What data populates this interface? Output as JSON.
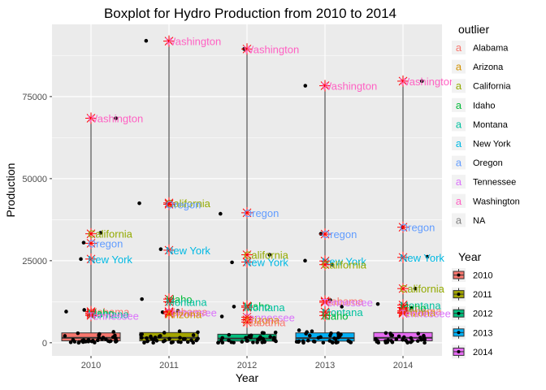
{
  "chart_data": {
    "type": "boxplot",
    "title": "Boxplot for Hydro Production from 2010 to 2014",
    "xlabel": "Year",
    "ylabel": "Production",
    "categories": [
      "2010",
      "2011",
      "2012",
      "2013",
      "2014"
    ],
    "ylim": [
      -4000,
      97000
    ],
    "yticks": [
      0,
      25000,
      50000,
      75000
    ],
    "ytick_labels": [
      "0",
      "25000",
      "50000",
      "75000"
    ],
    "boxes": [
      {
        "year": "2010",
        "q1": 600,
        "median": 1500,
        "q3": 3000
      },
      {
        "year": "2011",
        "q1": 600,
        "median": 1500,
        "q3": 3100
      },
      {
        "year": "2012",
        "q1": 500,
        "median": 1300,
        "q3": 2600
      },
      {
        "year": "2013",
        "q1": 500,
        "median": 1400,
        "q3": 3000
      },
      {
        "year": "2014",
        "q1": 600,
        "median": 1500,
        "q3": 3100
      }
    ],
    "outliers": [
      {
        "year": "2010",
        "state": "Washington",
        "value": 68400
      },
      {
        "year": "2010",
        "state": "California",
        "value": 33200
      },
      {
        "year": "2010",
        "state": "Oregon",
        "value": 30300
      },
      {
        "year": "2010",
        "state": "New York",
        "value": 25500
      },
      {
        "year": "2010",
        "state": "Alabama",
        "value": 9500
      },
      {
        "year": "2010",
        "state": "Idaho",
        "value": 9100
      },
      {
        "year": "2010",
        "state": "Montana",
        "value": 8700
      },
      {
        "year": "2010",
        "state": "Tennessee",
        "value": 8300
      },
      {
        "year": "2011",
        "state": "Washington",
        "value": 91900
      },
      {
        "year": "2011",
        "state": "California",
        "value": 42600
      },
      {
        "year": "2011",
        "state": "Oregon",
        "value": 42200
      },
      {
        "year": "2011",
        "state": "New York",
        "value": 28200
      },
      {
        "year": "2011",
        "state": "Idaho",
        "value": 13300
      },
      {
        "year": "2011",
        "state": "Montana",
        "value": 12500
      },
      {
        "year": "2011",
        "state": "Alabama",
        "value": 9500
      },
      {
        "year": "2011",
        "state": "Tennessee",
        "value": 9200
      },
      {
        "year": "2011",
        "state": "Arizona",
        "value": 8800
      },
      {
        "year": "2012",
        "state": "Washington",
        "value": 89500
      },
      {
        "year": "2012",
        "state": "Oregon",
        "value": 39600
      },
      {
        "year": "2012",
        "state": "California",
        "value": 26800
      },
      {
        "year": "2012",
        "state": "New York",
        "value": 24600
      },
      {
        "year": "2012",
        "state": "Idaho",
        "value": 11200
      },
      {
        "year": "2012",
        "state": "Montana",
        "value": 10800
      },
      {
        "year": "2012",
        "state": "Tennessee",
        "value": 7800
      },
      {
        "year": "2012",
        "state": "Arizona",
        "value": 7000
      },
      {
        "year": "2012",
        "state": "Alabama",
        "value": 6300
      },
      {
        "year": "2013",
        "state": "Washington",
        "value": 78300
      },
      {
        "year": "2013",
        "state": "Oregon",
        "value": 33100
      },
      {
        "year": "2013",
        "state": "New York",
        "value": 24900
      },
      {
        "year": "2013",
        "state": "California",
        "value": 23800
      },
      {
        "year": "2013",
        "state": "Alabama",
        "value": 12700
      },
      {
        "year": "2013",
        "state": "Tennessee",
        "value": 12300
      },
      {
        "year": "2013",
        "state": "Montana",
        "value": 9400
      },
      {
        "year": "2013",
        "state": "Idaho",
        "value": 8300
      },
      {
        "year": "2014",
        "state": "Washington",
        "value": 79700
      },
      {
        "year": "2014",
        "state": "Oregon",
        "value": 35200
      },
      {
        "year": "2014",
        "state": "New York",
        "value": 26000
      },
      {
        "year": "2014",
        "state": "California",
        "value": 16500
      },
      {
        "year": "2014",
        "state": "Montana",
        "value": 11500
      },
      {
        "year": "2014",
        "state": "Idaho",
        "value": 10700
      },
      {
        "year": "2014",
        "state": "Alabama",
        "value": 9700
      },
      {
        "year": "2014",
        "state": "Arizona",
        "value": 9300
      },
      {
        "year": "2014",
        "state": "Tennessee",
        "value": 9000
      }
    ],
    "jitter_points": [
      {
        "year": "2010",
        "value": 68400
      },
      {
        "year": "2010",
        "value": 33500
      },
      {
        "year": "2010",
        "value": 30500
      },
      {
        "year": "2010",
        "value": 25500
      },
      {
        "year": "2010",
        "value": 10000
      },
      {
        "year": "2010",
        "value": 9500
      },
      {
        "year": "2011",
        "value": 92000
      },
      {
        "year": "2011",
        "value": 42500
      },
      {
        "year": "2011",
        "value": 42300
      },
      {
        "year": "2011",
        "value": 28500
      },
      {
        "year": "2011",
        "value": 13300
      },
      {
        "year": "2011",
        "value": 9700
      },
      {
        "year": "2011",
        "value": 9300
      },
      {
        "year": "2012",
        "value": 89500
      },
      {
        "year": "2012",
        "value": 39300
      },
      {
        "year": "2012",
        "value": 26800
      },
      {
        "year": "2012",
        "value": 24500
      },
      {
        "year": "2012",
        "value": 11000
      },
      {
        "year": "2012",
        "value": 8000
      },
      {
        "year": "2013",
        "value": 78300
      },
      {
        "year": "2013",
        "value": 33200
      },
      {
        "year": "2013",
        "value": 25000
      },
      {
        "year": "2013",
        "value": 23800
      },
      {
        "year": "2013",
        "value": 13000
      },
      {
        "year": "2013",
        "value": 11000
      },
      {
        "year": "2014",
        "value": 79700
      },
      {
        "year": "2014",
        "value": 35200
      },
      {
        "year": "2014",
        "value": 26200
      },
      {
        "year": "2014",
        "value": 16500
      },
      {
        "year": "2014",
        "value": 11800
      },
      {
        "year": "2014",
        "value": 10500
      }
    ],
    "legend_outlier": {
      "title": "outlier",
      "position": "right",
      "entries": [
        {
          "label": "Alabama",
          "color": "#F8766D"
        },
        {
          "label": "Arizona",
          "color": "#D39200"
        },
        {
          "label": "California",
          "color": "#93AA00"
        },
        {
          "label": "Idaho",
          "color": "#00BA38"
        },
        {
          "label": "Montana",
          "color": "#00C19F"
        },
        {
          "label": "New York",
          "color": "#00B9E3"
        },
        {
          "label": "Oregon",
          "color": "#619CFF"
        },
        {
          "label": "Tennessee",
          "color": "#DB72FB"
        },
        {
          "label": "Washington",
          "color": "#FF61C3"
        },
        {
          "label": "NA",
          "color": "#7F7F7F"
        }
      ]
    },
    "legend_year": {
      "title": "Year",
      "position": "right",
      "entries": [
        {
          "label": "2010",
          "color": "#F8766D"
        },
        {
          "label": "2011",
          "color": "#A3A500"
        },
        {
          "label": "2012",
          "color": "#00BF7D"
        },
        {
          "label": "2013",
          "color": "#00B0F6"
        },
        {
          "label": "2014",
          "color": "#E76BF3"
        }
      ]
    },
    "colors": {
      "panel_bg": "#EBEBEB",
      "grid": "#FFFFFF",
      "outlier_marker": "#FF0000"
    },
    "grid": true
  }
}
